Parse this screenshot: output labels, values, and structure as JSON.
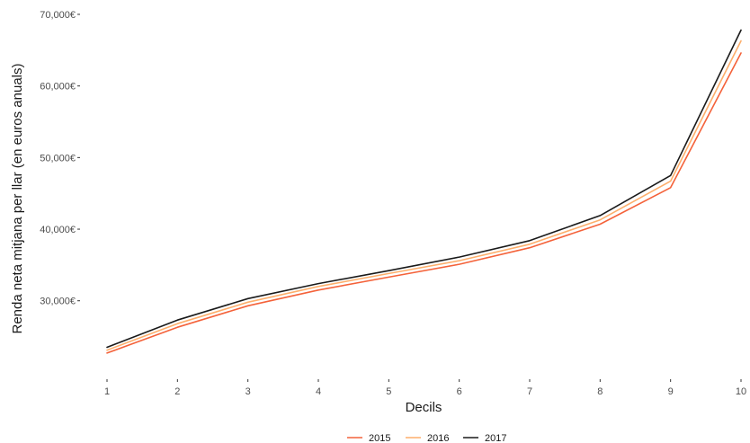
{
  "chart_data": {
    "type": "line",
    "title": "",
    "xlabel": "Decils",
    "ylabel": "Renda neta mitjana per llar (en euros anuals)",
    "x": [
      1,
      2,
      3,
      4,
      5,
      6,
      7,
      8,
      9,
      10
    ],
    "x_tick_labels": [
      "1",
      "2",
      "3",
      "4",
      "5",
      "6",
      "7",
      "8",
      "9",
      "10"
    ],
    "y_ticks": [
      30000,
      40000,
      50000,
      60000,
      70000
    ],
    "y_tick_labels": [
      "30,000€",
      "40,000€",
      "50,000€",
      "60,000€",
      "70,000€"
    ],
    "ylim": [
      20300,
      70500
    ],
    "xlim": [
      1,
      10
    ],
    "grid": false,
    "legend_position": "bottom",
    "series": [
      {
        "name": "2015",
        "color": "#f4623a",
        "values": [
          22700,
          26300,
          29300,
          31500,
          33300,
          35100,
          37400,
          40700,
          45800,
          64600
        ]
      },
      {
        "name": "2016",
        "color": "#fdae6b",
        "values": [
          23100,
          26800,
          29800,
          32000,
          33800,
          35600,
          37900,
          41300,
          46700,
          66300
        ]
      },
      {
        "name": "2017",
        "color": "#1a1a1a",
        "values": [
          23500,
          27300,
          30300,
          32400,
          34200,
          36100,
          38400,
          41900,
          47500,
          67800
        ]
      }
    ]
  }
}
